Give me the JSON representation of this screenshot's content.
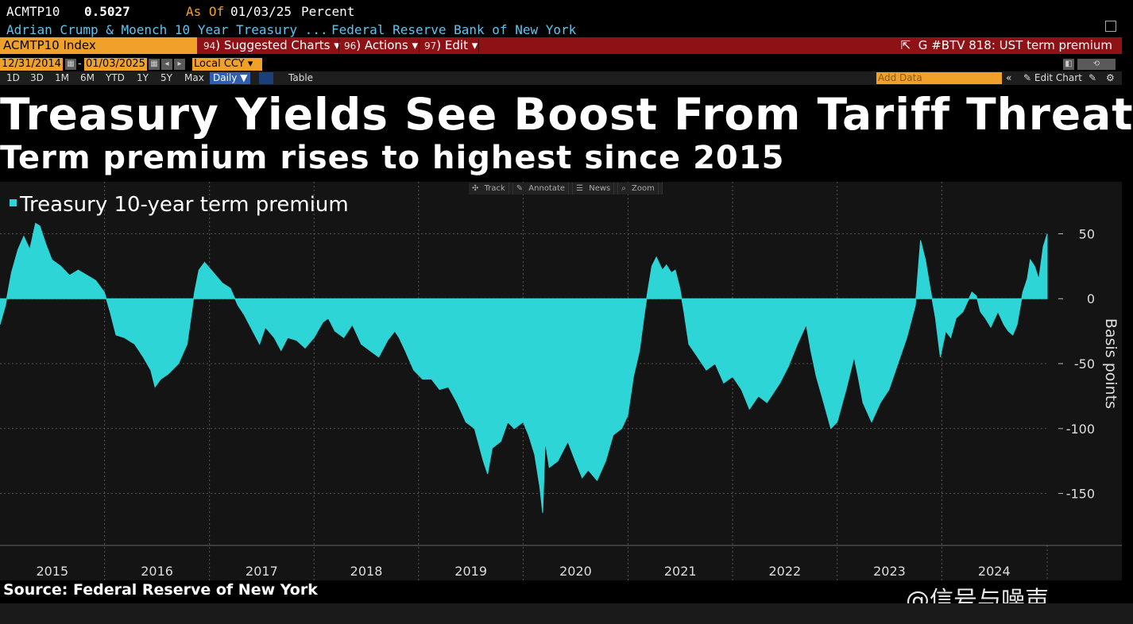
{
  "header": {
    "ticker": "ACMTP10",
    "value": "0.5027",
    "as_of_label": "As Of",
    "as_of_date": "01/03/25",
    "unit": "Percent",
    "description": "Adrian Crump & Moench 10 Year Treasury ...",
    "source_org": "Federal Reserve Bank of New York"
  },
  "command_bar": {
    "security": "ACMTP10 Index",
    "menus": [
      {
        "num": "94",
        "label": "Suggested Charts"
      },
      {
        "num": "96",
        "label": "Actions"
      },
      {
        "num": "97",
        "label": "Edit"
      }
    ],
    "gbtv": "G #BTV 818: UST term premium"
  },
  "date_range": {
    "start": "12/31/2014",
    "end": "01/03/2025",
    "currency": "Local CCY"
  },
  "periods": [
    "1D",
    "3D",
    "1M",
    "6M",
    "YTD",
    "1Y",
    "5Y",
    "Max"
  ],
  "frequency": "Daily",
  "table_label": "Table",
  "add_data_placeholder": "Add Data",
  "edit_chart_label": "Edit Chart",
  "chart_tools": [
    "Track",
    "Annotate",
    "News",
    "Zoom"
  ],
  "headline": "Treasury Yields See Boost From Tariff Threats",
  "subheadline": "Term premium rises to highest since 2015",
  "source": "Source: Federal Reserve of New York",
  "watermark": "@信号与噪声",
  "colors": {
    "series": "#2ed5d6",
    "command_bar": "#8e1116",
    "accent_orange": "#f0a12a",
    "chart_background": "#141414"
  },
  "chart_data": {
    "type": "area",
    "legend": "Treasury 10-year term premium",
    "ylabel": "Basis points",
    "ylim": [
      -190,
      90
    ],
    "yticks": [
      50,
      0,
      -50,
      -100,
      -150
    ],
    "xlim": [
      "2015-01-01",
      "2025-01-03"
    ],
    "xtick_labels": [
      "2015",
      "2016",
      "2017",
      "2018",
      "2019",
      "2020",
      "2021",
      "2022",
      "2023",
      "2024"
    ],
    "grid": true,
    "legend_position": "top-left",
    "series": [
      {
        "name": "Treasury 10-year term premium",
        "points": [
          [
            "2015-01-01",
            -20
          ],
          [
            "2015-01-20",
            -5
          ],
          [
            "2015-02-10",
            20
          ],
          [
            "2015-03-05",
            38
          ],
          [
            "2015-03-25",
            48
          ],
          [
            "2015-04-15",
            38
          ],
          [
            "2015-05-05",
            58
          ],
          [
            "2015-05-20",
            56
          ],
          [
            "2015-06-10",
            42
          ],
          [
            "2015-07-01",
            30
          ],
          [
            "2015-08-01",
            25
          ],
          [
            "2015-09-01",
            18
          ],
          [
            "2015-10-01",
            22
          ],
          [
            "2015-11-01",
            18
          ],
          [
            "2015-12-01",
            14
          ],
          [
            "2015-12-31",
            5
          ],
          [
            "2016-01-20",
            -10
          ],
          [
            "2016-02-10",
            -28
          ],
          [
            "2016-03-10",
            -30
          ],
          [
            "2016-04-15",
            -35
          ],
          [
            "2016-05-15",
            -45
          ],
          [
            "2016-06-10",
            -55
          ],
          [
            "2016-06-25",
            -68
          ],
          [
            "2016-07-15",
            -62
          ],
          [
            "2016-08-10",
            -58
          ],
          [
            "2016-09-15",
            -50
          ],
          [
            "2016-10-15",
            -35
          ],
          [
            "2016-11-10",
            5
          ],
          [
            "2016-11-25",
            22
          ],
          [
            "2016-12-15",
            28
          ],
          [
            "2017-01-15",
            20
          ],
          [
            "2017-02-15",
            12
          ],
          [
            "2017-03-15",
            8
          ],
          [
            "2017-04-10",
            -5
          ],
          [
            "2017-05-01",
            -12
          ],
          [
            "2017-06-01",
            -25
          ],
          [
            "2017-06-25",
            -35
          ],
          [
            "2017-07-15",
            -22
          ],
          [
            "2017-08-15",
            -30
          ],
          [
            "2017-09-08",
            -40
          ],
          [
            "2017-10-01",
            -30
          ],
          [
            "2017-11-01",
            -32
          ],
          [
            "2017-12-01",
            -38
          ],
          [
            "2018-01-01",
            -30
          ],
          [
            "2018-02-01",
            -18
          ],
          [
            "2018-02-20",
            -15
          ],
          [
            "2018-03-15",
            -25
          ],
          [
            "2018-04-15",
            -30
          ],
          [
            "2018-05-15",
            -20
          ],
          [
            "2018-06-15",
            -35
          ],
          [
            "2018-07-15",
            -40
          ],
          [
            "2018-08-15",
            -45
          ],
          [
            "2018-09-15",
            -32
          ],
          [
            "2018-10-10",
            -25
          ],
          [
            "2018-10-25",
            -30
          ],
          [
            "2018-11-15",
            -40
          ],
          [
            "2018-12-15",
            -55
          ],
          [
            "2019-01-15",
            -62
          ],
          [
            "2019-02-15",
            -62
          ],
          [
            "2019-03-15",
            -70
          ],
          [
            "2019-04-15",
            -68
          ],
          [
            "2019-05-15",
            -80
          ],
          [
            "2019-06-15",
            -95
          ],
          [
            "2019-07-15",
            -100
          ],
          [
            "2019-08-15",
            -125
          ],
          [
            "2019-08-30",
            -135
          ],
          [
            "2019-09-15",
            -115
          ],
          [
            "2019-10-15",
            -110
          ],
          [
            "2019-11-08",
            -95
          ],
          [
            "2019-12-01",
            -100
          ],
          [
            "2020-01-01",
            -95
          ],
          [
            "2020-01-20",
            -105
          ],
          [
            "2020-02-10",
            -120
          ],
          [
            "2020-02-28",
            -145
          ],
          [
            "2020-03-09",
            -165
          ],
          [
            "2020-03-18",
            -110
          ],
          [
            "2020-04-01",
            -130
          ],
          [
            "2020-05-01",
            -125
          ],
          [
            "2020-06-05",
            -110
          ],
          [
            "2020-07-01",
            -125
          ],
          [
            "2020-07-25",
            -138
          ],
          [
            "2020-08-15",
            -132
          ],
          [
            "2020-09-15",
            -140
          ],
          [
            "2020-10-15",
            -125
          ],
          [
            "2020-11-10",
            -105
          ],
          [
            "2020-12-10",
            -100
          ],
          [
            "2020-12-31",
            -90
          ],
          [
            "2021-01-20",
            -60
          ],
          [
            "2021-02-10",
            -40
          ],
          [
            "2021-02-25",
            -15
          ],
          [
            "2021-03-10",
            5
          ],
          [
            "2021-03-25",
            25
          ],
          [
            "2021-04-10",
            32
          ],
          [
            "2021-05-01",
            22
          ],
          [
            "2021-05-15",
            26
          ],
          [
            "2021-06-01",
            20
          ],
          [
            "2021-06-15",
            22
          ],
          [
            "2021-07-01",
            8
          ],
          [
            "2021-07-15",
            -10
          ],
          [
            "2021-08-01",
            -35
          ],
          [
            "2021-09-01",
            -45
          ],
          [
            "2021-10-01",
            -55
          ],
          [
            "2021-11-01",
            -50
          ],
          [
            "2021-12-01",
            -65
          ],
          [
            "2022-01-01",
            -60
          ],
          [
            "2022-02-01",
            -70
          ],
          [
            "2022-03-01",
            -85
          ],
          [
            "2022-04-01",
            -75
          ],
          [
            "2022-05-01",
            -80
          ],
          [
            "2022-06-15",
            -65
          ],
          [
            "2022-07-15",
            -52
          ],
          [
            "2022-08-15",
            -35
          ],
          [
            "2022-09-15",
            -20
          ],
          [
            "2022-10-01",
            -40
          ],
          [
            "2022-10-20",
            -60
          ],
          [
            "2022-11-15",
            -80
          ],
          [
            "2022-12-10",
            -100
          ],
          [
            "2023-01-01",
            -95
          ],
          [
            "2023-02-01",
            -70
          ],
          [
            "2023-03-01",
            -45
          ],
          [
            "2023-03-15",
            -60
          ],
          [
            "2023-04-01",
            -80
          ],
          [
            "2023-05-01",
            -95
          ],
          [
            "2023-06-01",
            -80
          ],
          [
            "2023-07-01",
            -70
          ],
          [
            "2023-08-01",
            -50
          ],
          [
            "2023-09-01",
            -30
          ],
          [
            "2023-10-01",
            -5
          ],
          [
            "2023-10-19",
            45
          ],
          [
            "2023-11-05",
            30
          ],
          [
            "2023-11-20",
            10
          ],
          [
            "2023-12-10",
            -15
          ],
          [
            "2023-12-27",
            -45
          ],
          [
            "2024-01-15",
            -25
          ],
          [
            "2024-02-01",
            -30
          ],
          [
            "2024-02-20",
            -15
          ],
          [
            "2024-03-15",
            -10
          ],
          [
            "2024-04-15",
            5
          ],
          [
            "2024-05-01",
            2
          ],
          [
            "2024-05-15",
            -10
          ],
          [
            "2024-06-01",
            -15
          ],
          [
            "2024-06-20",
            -22
          ],
          [
            "2024-07-15",
            -10
          ],
          [
            "2024-08-05",
            -20
          ],
          [
            "2024-08-20",
            -25
          ],
          [
            "2024-09-05",
            -28
          ],
          [
            "2024-09-20",
            -20
          ],
          [
            "2024-10-10",
            5
          ],
          [
            "2024-10-25",
            15
          ],
          [
            "2024-11-05",
            30
          ],
          [
            "2024-11-20",
            25
          ],
          [
            "2024-12-05",
            15
          ],
          [
            "2024-12-20",
            40
          ],
          [
            "2025-01-03",
            50
          ]
        ]
      }
    ]
  }
}
